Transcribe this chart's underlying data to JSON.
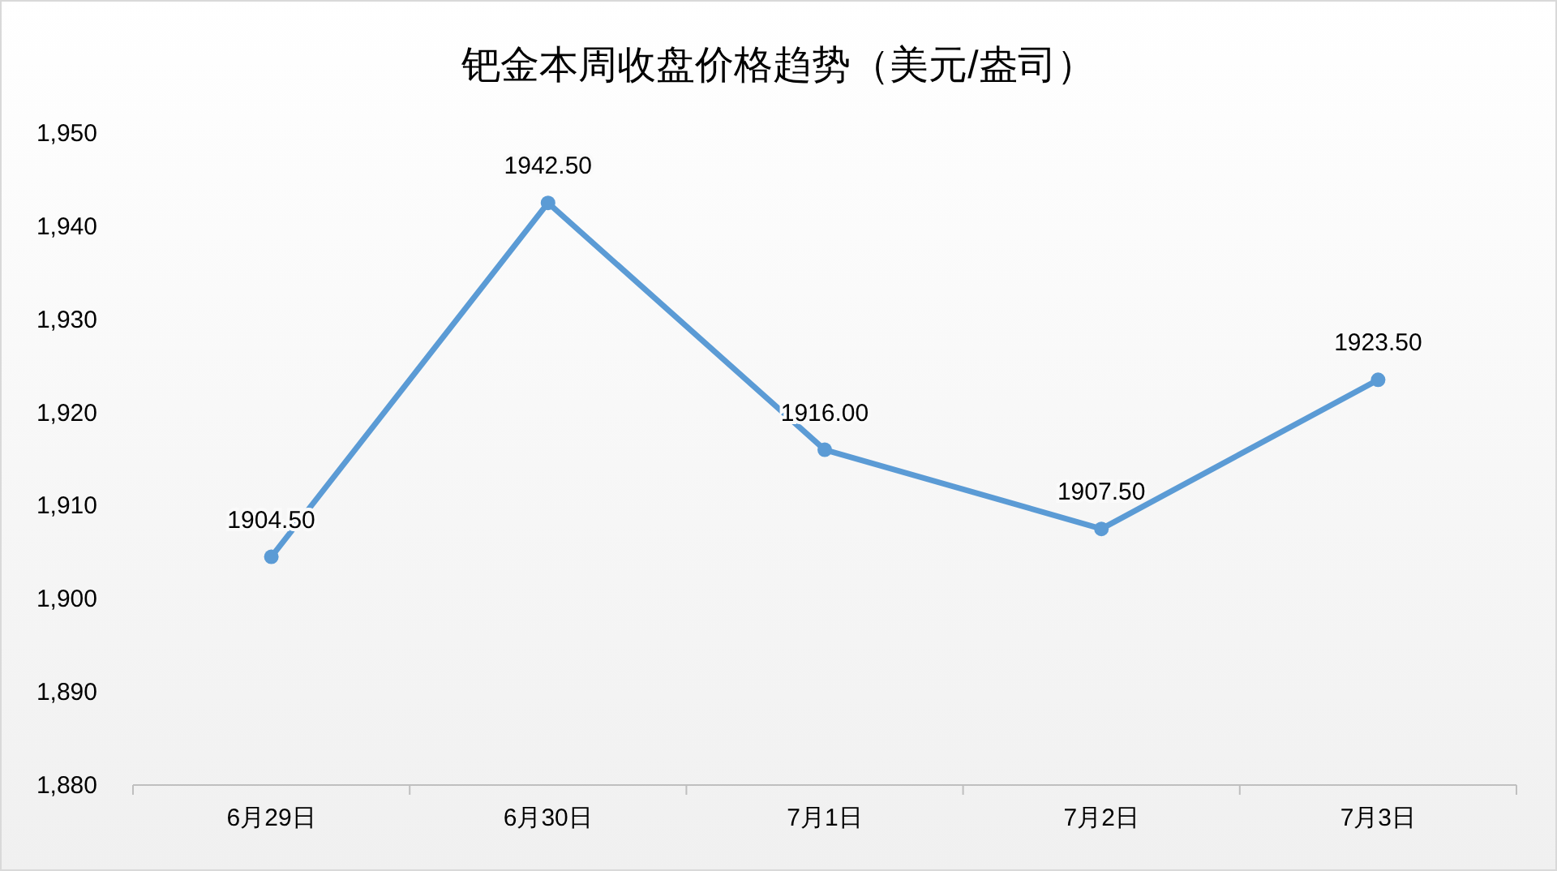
{
  "chart_data": {
    "type": "line",
    "title": "钯金本周收盘价格趋势（美元/盎司）",
    "categories": [
      "6月29日",
      "6月30日",
      "7月1日",
      "7月2日",
      "7月3日"
    ],
    "series": [
      {
        "color": "#5b9bd5",
        "values": [
          1904.5,
          1942.5,
          1916.0,
          1907.5,
          1923.5
        ],
        "value_labels": [
          "1904.50",
          "1942.50",
          "1916.00",
          "1907.50",
          "1923.50"
        ]
      }
    ],
    "ylim": [
      1880,
      1950
    ],
    "yticks": [
      {
        "value": 1880,
        "label": "1,880"
      },
      {
        "value": 1890,
        "label": "1,890"
      },
      {
        "value": 1900,
        "label": "1,900"
      },
      {
        "value": 1910,
        "label": "1,910"
      },
      {
        "value": 1920,
        "label": "1,920"
      },
      {
        "value": 1930,
        "label": "1,930"
      },
      {
        "value": 1940,
        "label": "1,940"
      },
      {
        "value": 1950,
        "label": "1,950"
      }
    ],
    "grid": false,
    "marker": "circle",
    "line_style": "solid"
  }
}
